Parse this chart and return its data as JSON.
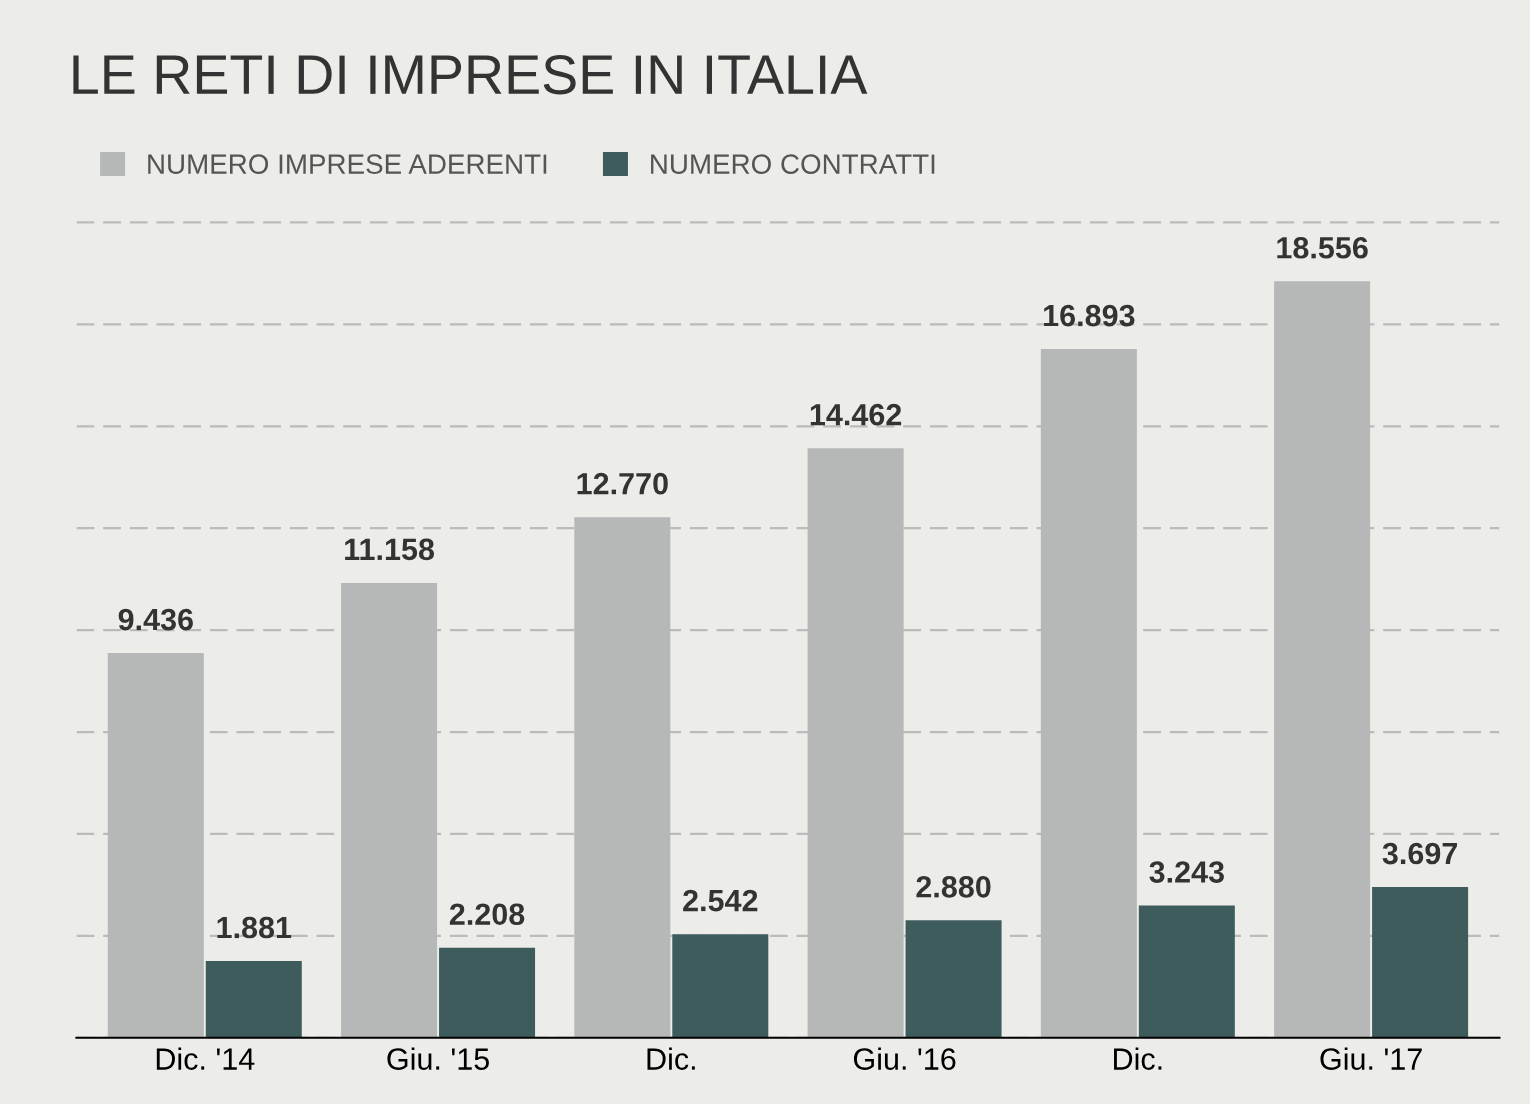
{
  "chart_data": {
    "type": "bar",
    "title": "LE RETI DI IMPRESE IN ITALIA",
    "categories": [
      "Dic. '14",
      "Giu. '15",
      "Dic.",
      "Giu. '16",
      "Dic.",
      "Giu. '17"
    ],
    "series": [
      {
        "name": "NUMERO IMPRESE ADERENTI",
        "color": "#b5b8b6",
        "values": [
          9436,
          11158,
          12770,
          14462,
          16893,
          18556
        ],
        "value_labels": [
          "9.436",
          "11.158",
          "12.770",
          "14.462",
          "16.893",
          "18.556"
        ]
      },
      {
        "name": "NUMERO CONTRATTI",
        "color": "#3f5c5d",
        "values": [
          1881,
          2208,
          2542,
          2880,
          3243,
          3697
        ],
        "value_labels": [
          "1.881",
          "2.208",
          "2.542",
          "2.880",
          "3.243",
          "3.697"
        ]
      }
    ],
    "grid": "y",
    "legend": "top left",
    "tick_labels": "x"
  }
}
